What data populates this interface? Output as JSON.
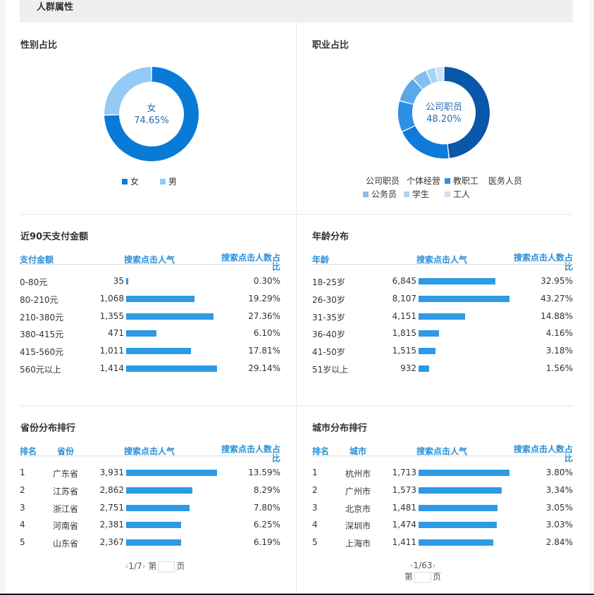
{
  "header": {
    "title": "人群属性"
  },
  "gender": {
    "title": "性别占比",
    "center_label": "女",
    "center_value": "74.65%",
    "slices": [
      {
        "label": "女",
        "value": 74.65,
        "color": "#0a7ad8"
      },
      {
        "label": "男",
        "value": 25.35,
        "color": "#92cbf7"
      }
    ]
  },
  "occupation": {
    "title": "职业占比",
    "center_label": "公司职员",
    "center_value": "48.20%",
    "slices": [
      {
        "label": "公司职员",
        "value": 48.2,
        "color": "#0857a8"
      },
      {
        "label": "个体经营",
        "value": 20,
        "color": "#0f7ad8"
      },
      {
        "label": "教职工",
        "value": 11,
        "color": "#2d8fe6"
      },
      {
        "label": "医务人员",
        "value": 9,
        "color": "#5aa8ec"
      },
      {
        "label": "公务员",
        "value": 5.5,
        "color": "#85c0f0"
      },
      {
        "label": "学生",
        "value": 3.3,
        "color": "#a8d4f6"
      },
      {
        "label": "工人",
        "value": 3,
        "color": "#c6e3fa"
      }
    ]
  },
  "payment": {
    "title": "近90天支付金额",
    "headers": [
      "支付金额",
      "搜索点击人气",
      "搜索点击人数占比"
    ],
    "rows": [
      [
        "0-80元",
        "35",
        "0.30%",
        35
      ],
      [
        "80-210元",
        "1,068",
        "19.29%",
        1068
      ],
      [
        "210-380元",
        "1,355",
        "27.36%",
        1355
      ],
      [
        "380-415元",
        "471",
        "6.10%",
        471
      ],
      [
        "415-560元",
        "1,011",
        "17.81%",
        1011
      ],
      [
        "560元以上",
        "1,414",
        "29.14%",
        1414
      ]
    ]
  },
  "age": {
    "title": "年龄分布",
    "headers": [
      "年龄",
      "搜索点击人气",
      "搜索点击人数占比"
    ],
    "rows": [
      [
        "18-25岁",
        "6,845",
        "32.95%",
        6845
      ],
      [
        "26-30岁",
        "8,107",
        "43.27%",
        8107
      ],
      [
        "31-35岁",
        "4,151",
        "14.88%",
        4151
      ],
      [
        "36-40岁",
        "1,815",
        "4.16%",
        1815
      ],
      [
        "41-50岁",
        "1,515",
        "3.18%",
        1515
      ],
      [
        "51岁以上",
        "932",
        "1.56%",
        932
      ]
    ]
  },
  "province": {
    "title": "省份分布排行",
    "headers": [
      "排名",
      "省份",
      "搜索点击人气",
      "搜索点击人数占比"
    ],
    "rows": [
      [
        "1",
        "广东省",
        "3,931",
        "13.59%",
        3931
      ],
      [
        "2",
        "江苏省",
        "2,862",
        "8.29%",
        2862
      ],
      [
        "3",
        "浙江省",
        "2,751",
        "7.80%",
        2751
      ],
      [
        "4",
        "河南省",
        "2,381",
        "6.25%",
        2381
      ],
      [
        "5",
        "山东省",
        "2,367",
        "6.19%",
        2367
      ]
    ],
    "pager": {
      "prev": "‹",
      "page": "1/7",
      "next": "›",
      "goto_prefix": "第",
      "goto_suffix": "页"
    }
  },
  "city": {
    "title": "城市分布排行",
    "headers": [
      "排名",
      "城市",
      "搜索点击人气",
      "搜索点击人数占比"
    ],
    "rows": [
      [
        "1",
        "杭州市",
        "1,713",
        "3.80%",
        1713
      ],
      [
        "2",
        "广州市",
        "1,573",
        "3.34%",
        1573
      ],
      [
        "3",
        "北京市",
        "1,481",
        "3.05%",
        1481
      ],
      [
        "4",
        "深圳市",
        "1,474",
        "3.03%",
        1474
      ],
      [
        "5",
        "上海市",
        "1,411",
        "2.84%",
        1411
      ]
    ],
    "pager": {
      "prev": "‹",
      "page": "1/63",
      "next": "›",
      "goto_prefix": "第",
      "goto_suffix": "页"
    }
  }
}
